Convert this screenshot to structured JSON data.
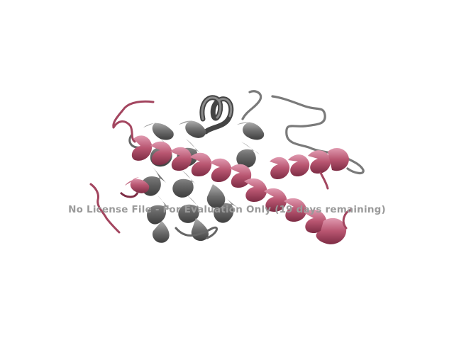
{
  "scene": {
    "subject": "protein-ribbon-structure",
    "background_color": "#ffffff",
    "colors": {
      "chain_a": "#6e6e6e",
      "chain_a_light": "#9e9e9e",
      "chain_a_dark": "#3e3e3e",
      "chain_b": "#b85570",
      "chain_b_light": "#d98aa0",
      "chain_b_dark": "#7d2c44"
    }
  },
  "watermark": {
    "text": "No License File - For Evaluation Only (19 days remaining)",
    "color": "#9a9a9a"
  }
}
